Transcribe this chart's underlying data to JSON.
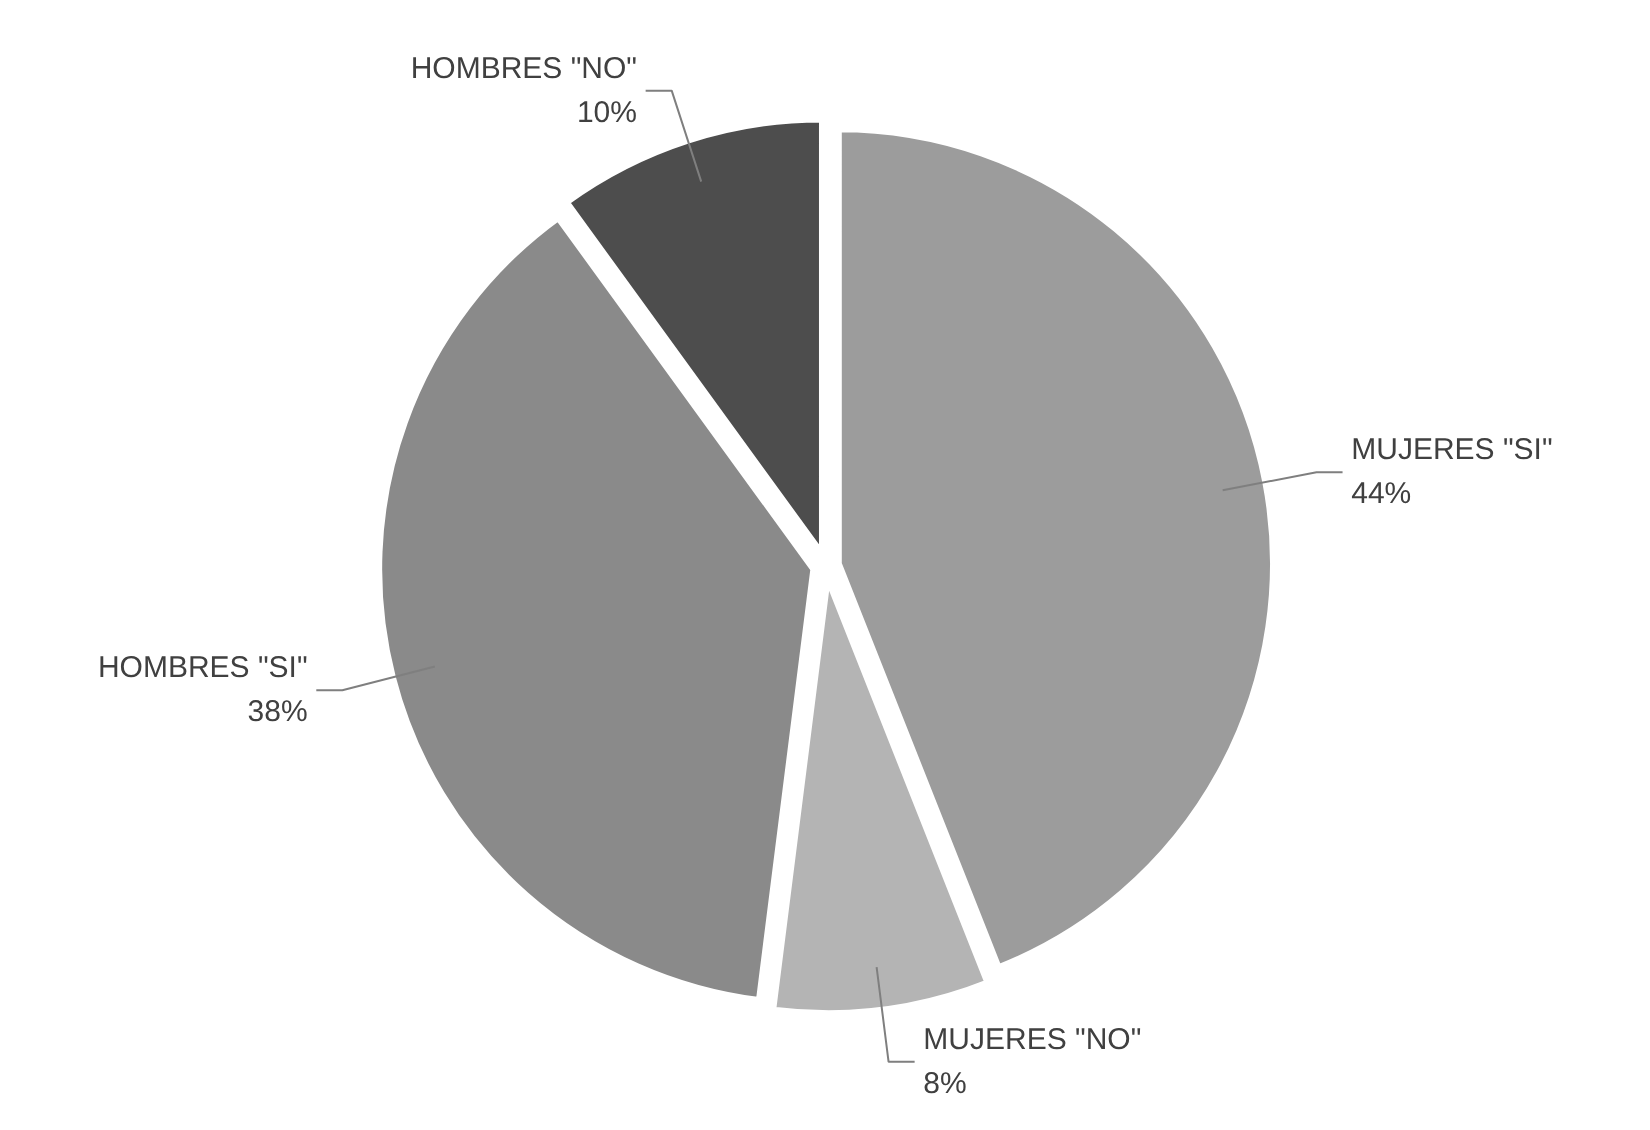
{
  "chart_data": {
    "type": "pie",
    "categories": [
      "MUJERES \"SI\"",
      "MUJERES \"NO\"",
      "HOMBRES \"SI\"",
      "HOMBRES \"NO\""
    ],
    "values": [
      44,
      8,
      38,
      10
    ],
    "value_labels": [
      "44%",
      "8%",
      "38%",
      "10%"
    ],
    "colors": [
      "#9c9c9c",
      "#b4b4b4",
      "#8a8a8a",
      "#4d4d4d"
    ]
  }
}
